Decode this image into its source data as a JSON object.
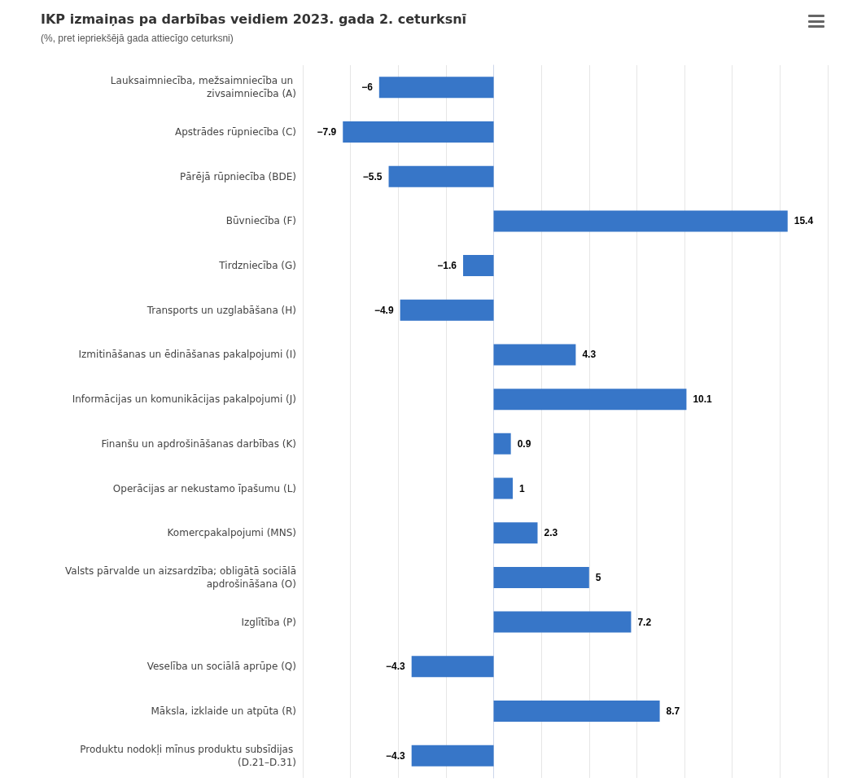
{
  "chart_data": {
    "type": "bar",
    "orientation": "horizontal",
    "title": "IKP izmaiņas pa darbības veidiem 2023. gada 2. ceturksnī",
    "subtitle": "(%, pret iepriekšējā gada attiecīgo ceturksni)",
    "categories": [
      "Lauksaimniecība, mežsaimniecība un zivsaimniecība (A)",
      "Apstrādes rūpniecība (C)",
      "Pārējā rūpniecība (BDE)",
      "Būvniecība (F)",
      "Tirdzniecība (G)",
      "Transports un uzglabāšana (H)",
      "Izmitināšanas un ēdināšanas pakalpojumi (I)",
      "Informācijas un komunikācijas pakalpojumi (J)",
      "Finanšu un apdrošināšanas darbības (K)",
      "Operācijas ar nekustamo īpašumu (L)",
      "Komercpakalpojumi (MNS)",
      "Valsts pārvalde un aizsardzība; obligātā sociālā apdrošināšana (O)",
      "Izglītība (P)",
      "Veselība un sociālā aprūpe (Q)",
      "Māksla, izklaide un atpūta (R)",
      "Produktu nodokļi mīnus produktu subsīdijas (D.21–D.31)"
    ],
    "values": [
      -6,
      -7.9,
      -5.5,
      15.4,
      -1.6,
      -4.9,
      4.3,
      10.1,
      0.9,
      1,
      2.3,
      5,
      7.2,
      -4.3,
      8.7,
      -4.3
    ],
    "color": "#3776c8",
    "xlim": [
      -10,
      17.5
    ],
    "xticks": [
      {
        "value": -10,
        "label": null
      },
      {
        "value": -7.5,
        "label": null
      },
      {
        "value": -5,
        "label": null
      },
      {
        "value": -2.5,
        "label": null
      },
      {
        "value": 0,
        "label": null
      },
      {
        "value": 2.5,
        "label": null
      },
      {
        "value": 5,
        "label": null
      },
      {
        "value": 7.5,
        "label": null
      },
      {
        "value": 10,
        "label": null
      },
      {
        "value": 12.5,
        "label": null
      },
      {
        "value": 15,
        "label": null
      },
      {
        "value": 17.5,
        "label": null
      }
    ],
    "grid": "x",
    "tick_labels": "y",
    "data_labels": true
  }
}
